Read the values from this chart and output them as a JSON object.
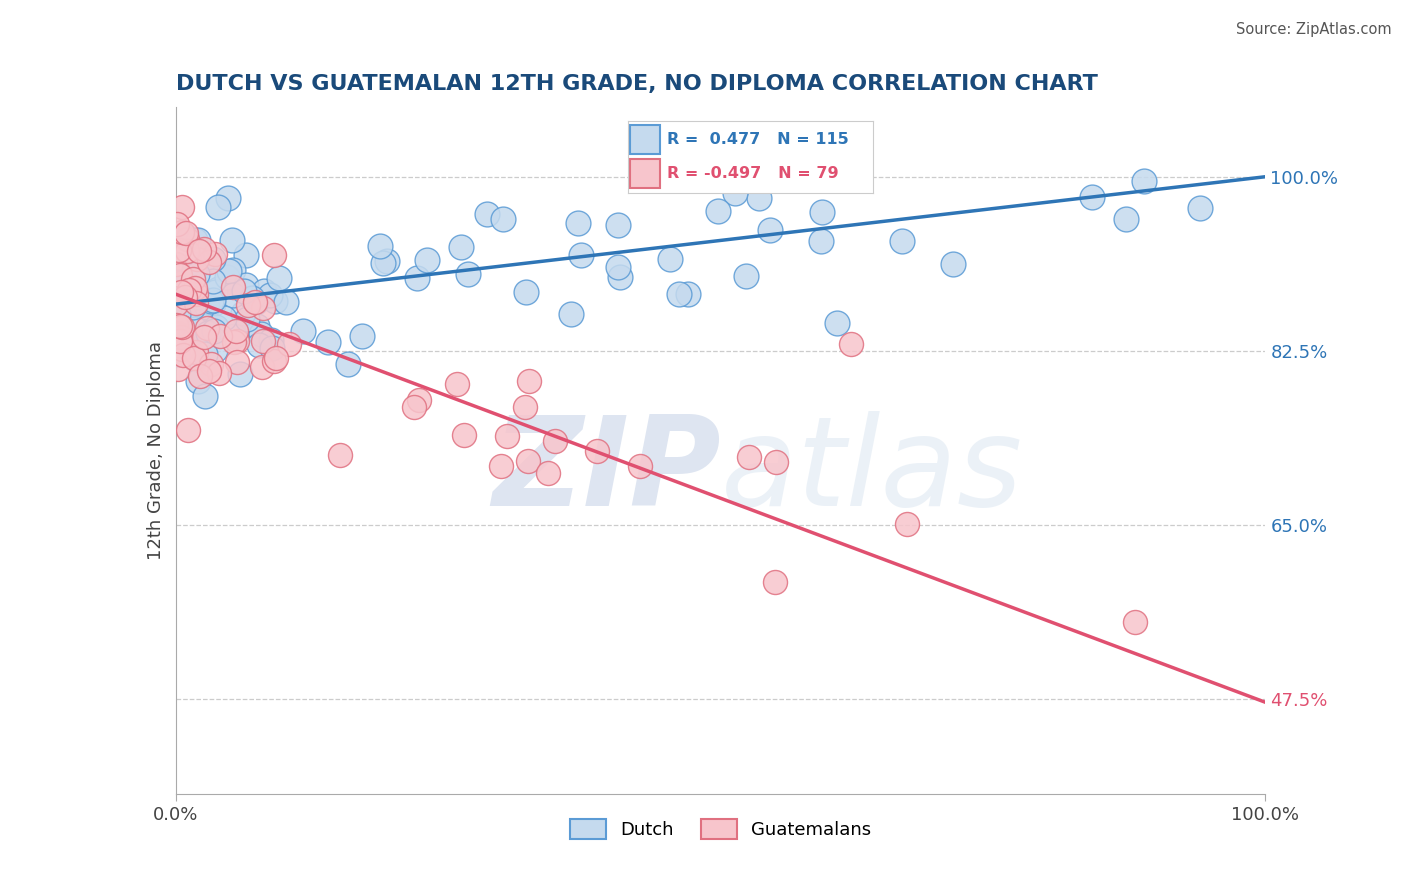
{
  "title": "DUTCH VS GUATEMALAN 12TH GRADE, NO DIPLOMA CORRELATION CHART",
  "source": "Source: ZipAtlas.com",
  "ylabel": "12th Grade, No Diploma",
  "yticks_right": [
    "100.0%",
    "82.5%",
    "65.0%",
    "47.5%"
  ],
  "yticks_right_vals": [
    1.0,
    0.825,
    0.65,
    0.475
  ],
  "dutch_R": 0.477,
  "dutch_N": 115,
  "guatemalan_R": -0.497,
  "guatemalan_N": 79,
  "dutch_color": "#c5daee",
  "dutch_edge_color": "#5b9bd5",
  "guatemalan_color": "#f7c5cc",
  "guatemalan_edge_color": "#e07080",
  "trend_dutch_color": "#2e75b6",
  "trend_guatemalan_color": "#e05070",
  "background_color": "#ffffff",
  "watermark_color": "#dde5f0",
  "xmin": 0.0,
  "xmax": 1.0,
  "ymin": 0.38,
  "ymax": 1.07,
  "dutch_intercept": 0.872,
  "dutch_slope": 0.128,
  "guat_intercept": 0.882,
  "guat_slope": -0.41
}
